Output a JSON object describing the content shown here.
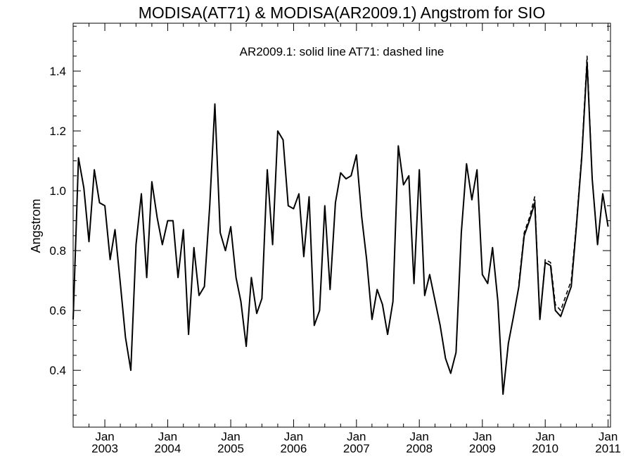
{
  "chart_data": {
    "type": "line",
    "title": "MODISA(AT71) & MODISA(AR2009.1)  Angstrom for SIO",
    "annotation": "AR2009.1: solid line   AT71: dashed line",
    "xlabel": "",
    "ylabel": "Angstrom",
    "xlim": [
      "2002-07-01",
      "2011-01-15"
    ],
    "ylim": [
      0.21,
      1.56
    ],
    "yticks": [
      0.4,
      0.6,
      0.8,
      1.0,
      1.2,
      1.4
    ],
    "ytick_labels": [
      "0.4",
      "0.6",
      "0.8",
      "1.0",
      "1.2",
      "1.4"
    ],
    "xticks": [
      {
        "month": "Jan",
        "year": "2003",
        "date": "2003-01-01"
      },
      {
        "month": "Jan",
        "year": "2004",
        "date": "2004-01-01"
      },
      {
        "month": "Jan",
        "year": "2005",
        "date": "2005-01-01"
      },
      {
        "month": "Jan",
        "year": "2006",
        "date": "2006-01-01"
      },
      {
        "month": "Jan",
        "year": "2007",
        "date": "2007-01-01"
      },
      {
        "month": "Jan",
        "year": "2008",
        "date": "2008-01-01"
      },
      {
        "month": "Jan",
        "year": "2009",
        "date": "2009-01-01"
      },
      {
        "month": "Jan",
        "year": "2010",
        "date": "2010-01-01"
      },
      {
        "month": "Jan",
        "year": "2011",
        "date": "2011-01-01"
      }
    ],
    "grid": false,
    "legend": "none",
    "series": [
      {
        "line_style": "solid",
        "color": "#000000",
        "points": [
          [
            "2002-07-01",
            0.57
          ],
          [
            "2002-08-01",
            1.11
          ],
          [
            "2002-09-01",
            1.01
          ],
          [
            "2002-10-01",
            0.83
          ],
          [
            "2002-11-01",
            1.07
          ],
          [
            "2002-12-01",
            0.96
          ],
          [
            "2003-01-01",
            0.95
          ],
          [
            "2003-02-01",
            0.77
          ],
          [
            "2003-03-01",
            0.87
          ],
          [
            "2003-04-01",
            0.69
          ],
          [
            "2003-05-01",
            0.51
          ],
          [
            "2003-06-01",
            0.4
          ],
          [
            "2003-07-01",
            0.82
          ],
          [
            "2003-08-01",
            0.99
          ],
          [
            "2003-09-01",
            0.71
          ],
          [
            "2003-10-01",
            1.03
          ],
          [
            "2003-11-01",
            0.91
          ],
          [
            "2003-12-01",
            0.82
          ],
          [
            "2004-01-01",
            0.9
          ],
          [
            "2004-02-01",
            0.9
          ],
          [
            "2004-03-01",
            0.71
          ],
          [
            "2004-04-01",
            0.87
          ],
          [
            "2004-05-01",
            0.52
          ],
          [
            "2004-06-01",
            0.81
          ],
          [
            "2004-07-01",
            0.65
          ],
          [
            "2004-08-01",
            0.68
          ],
          [
            "2004-09-01",
            0.95
          ],
          [
            "2004-10-01",
            1.29
          ],
          [
            "2004-11-01",
            0.86
          ],
          [
            "2004-12-01",
            0.8
          ],
          [
            "2005-01-01",
            0.88
          ],
          [
            "2005-02-01",
            0.71
          ],
          [
            "2005-03-01",
            0.63
          ],
          [
            "2005-04-01",
            0.48
          ],
          [
            "2005-05-01",
            0.71
          ],
          [
            "2005-06-01",
            0.59
          ],
          [
            "2005-07-01",
            0.64
          ],
          [
            "2005-08-01",
            1.07
          ],
          [
            "2005-09-01",
            0.82
          ],
          [
            "2005-10-01",
            1.2
          ],
          [
            "2005-11-01",
            1.17
          ],
          [
            "2005-12-01",
            0.95
          ],
          [
            "2006-01-01",
            0.94
          ],
          [
            "2006-02-01",
            0.99
          ],
          [
            "2006-03-01",
            0.78
          ],
          [
            "2006-04-01",
            0.98
          ],
          [
            "2006-05-01",
            0.55
          ],
          [
            "2006-06-01",
            0.6
          ],
          [
            "2006-07-01",
            0.95
          ],
          [
            "2006-08-01",
            0.67
          ],
          [
            "2006-09-01",
            0.96
          ],
          [
            "2006-10-01",
            1.06
          ],
          [
            "2006-11-01",
            1.04
          ],
          [
            "2006-12-01",
            1.05
          ],
          [
            "2007-01-01",
            1.12
          ],
          [
            "2007-02-01",
            0.91
          ],
          [
            "2007-03-01",
            0.77
          ],
          [
            "2007-04-01",
            0.57
          ],
          [
            "2007-05-01",
            0.67
          ],
          [
            "2007-06-01",
            0.62
          ],
          [
            "2007-07-01",
            0.52
          ],
          [
            "2007-08-01",
            0.63
          ],
          [
            "2007-09-01",
            1.15
          ],
          [
            "2007-10-01",
            1.02
          ],
          [
            "2007-11-01",
            1.05
          ],
          [
            "2007-12-01",
            0.69
          ],
          [
            "2008-01-01",
            1.07
          ],
          [
            "2008-02-01",
            0.65
          ],
          [
            "2008-03-01",
            0.72
          ],
          [
            "2008-05-01",
            0.55
          ],
          [
            "2008-06-01",
            0.44
          ],
          [
            "2008-07-01",
            0.39
          ],
          [
            "2008-08-01",
            0.46
          ],
          [
            "2008-09-01",
            0.86
          ],
          [
            "2008-10-01",
            1.09
          ],
          [
            "2008-11-01",
            0.97
          ],
          [
            "2008-12-01",
            1.07
          ],
          [
            "2009-01-01",
            0.72
          ],
          [
            "2009-02-01",
            0.69
          ],
          [
            "2009-03-01",
            0.81
          ],
          [
            "2009-04-01",
            0.63
          ],
          [
            "2009-05-01",
            0.32
          ],
          [
            "2009-06-01",
            0.49
          ],
          [
            "2009-07-01",
            0.58
          ],
          [
            "2009-08-01",
            0.68
          ],
          [
            "2009-09-01",
            0.85
          ],
          [
            "2009-10-01",
            0.9
          ],
          [
            "2009-11-01",
            0.96
          ],
          [
            "2009-12-01",
            0.57
          ],
          [
            "2010-01-01",
            0.76
          ],
          [
            "2010-02-01",
            0.75
          ],
          [
            "2010-03-01",
            0.6
          ],
          [
            "2010-04-01",
            0.58
          ],
          [
            "2010-05-01",
            0.63
          ],
          [
            "2010-06-01",
            0.68
          ],
          [
            "2010-07-01",
            0.88
          ],
          [
            "2010-08-01",
            1.11
          ],
          [
            "2010-09-01",
            1.43
          ],
          [
            "2010-10-01",
            1.04
          ],
          [
            "2010-11-01",
            0.82
          ],
          [
            "2010-12-01",
            0.99
          ],
          [
            "2011-01-01",
            0.88
          ]
        ]
      },
      {
        "line_style": "dashed",
        "color": "#000000",
        "points": [
          [
            "2009-08-01",
            0.69
          ],
          [
            "2009-09-01",
            0.86
          ],
          [
            "2009-10-01",
            0.91
          ],
          [
            "2009-11-01",
            0.98
          ],
          [
            "2009-12-01",
            0.57
          ],
          [
            "2010-01-01",
            0.77
          ],
          [
            "2010-02-01",
            0.76
          ],
          [
            "2010-03-01",
            0.62
          ],
          [
            "2010-04-01",
            0.6
          ],
          [
            "2010-05-01",
            0.65
          ],
          [
            "2010-06-01",
            0.7
          ],
          [
            "2010-07-01",
            0.89
          ],
          [
            "2010-08-01",
            1.12
          ],
          [
            "2010-09-01",
            1.45
          ],
          [
            "2010-10-01",
            1.04
          ],
          [
            "2010-11-01",
            0.82
          ],
          [
            "2010-12-01",
            0.99
          ],
          [
            "2011-01-01",
            0.88
          ]
        ]
      }
    ]
  }
}
